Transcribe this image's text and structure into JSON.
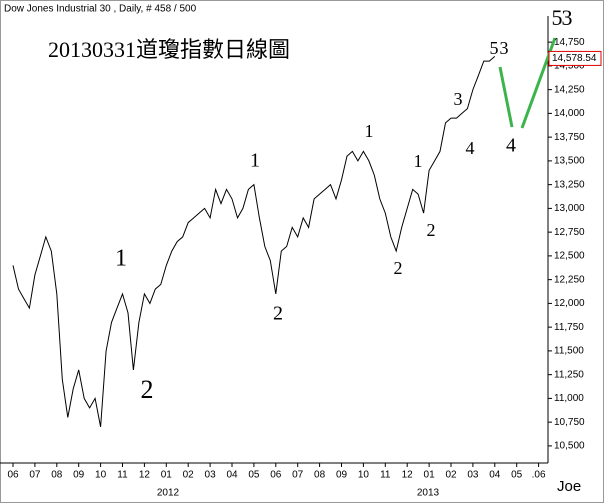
{
  "header": "Dow Jones Industrial 30 , Daily, # 458 / 500",
  "chart_data": {
    "type": "line",
    "title": "20130331道瓊指數日線圖",
    "categories": [
      "06",
      null,
      null,
      null,
      "07",
      null,
      null,
      null,
      "08",
      null,
      null,
      null,
      "09",
      null,
      null,
      null,
      "10",
      null,
      null,
      null,
      "11",
      null,
      null,
      null,
      "12",
      null,
      null,
      null,
      "01",
      null,
      null,
      null,
      "02",
      null,
      null,
      null,
      "03",
      null,
      null,
      null,
      "04",
      null,
      null,
      null,
      "05",
      null,
      null,
      null,
      "06",
      null,
      null,
      null,
      "07",
      null,
      null,
      null,
      "08",
      null,
      null,
      null,
      "09",
      null,
      null,
      null,
      "10",
      null,
      null,
      null,
      "11",
      null,
      null,
      null,
      "12",
      null,
      null,
      null,
      "01",
      null,
      null,
      null,
      "02",
      null,
      null,
      null,
      "03",
      null,
      null,
      null,
      "04",
      null,
      null,
      null,
      "05",
      null,
      null,
      null,
      ".06",
      null,
      null,
      null
    ],
    "year_labels": [
      "2012",
      "2013"
    ],
    "series": [
      {
        "color": "#000000",
        "values": [
          12400,
          12150,
          12050,
          11950,
          12300,
          12500,
          12700,
          12550,
          12100,
          11200,
          10800,
          11100,
          11300,
          11000,
          10900,
          11000,
          10700,
          11500,
          11800,
          11950,
          12100,
          11900,
          11300,
          11800,
          12100,
          12000,
          12150,
          12200,
          12400,
          12550,
          12650,
          12700,
          12850,
          12900,
          12950,
          13000,
          12900,
          13200,
          13050,
          13200,
          13100,
          12900,
          13000,
          13200,
          13250,
          12900,
          12600,
          12450,
          12100,
          12550,
          12600,
          12800,
          12700,
          12900,
          12800,
          13100,
          13150,
          13200,
          13250,
          13100,
          13300,
          13550,
          13600,
          13500,
          13600,
          13500,
          13350,
          13100,
          12950,
          12700,
          12550,
          12800,
          13000,
          13200,
          13150,
          12950,
          13400,
          13500,
          13600,
          13900,
          13950,
          13950,
          14000,
          14050,
          14250,
          14400,
          14550,
          14550,
          14600,
          null,
          null,
          null,
          null,
          null,
          null,
          null,
          null,
          null,
          null,
          null
        ]
      }
    ],
    "ylim": [
      10320,
      15025
    ],
    "yticks": [
      {
        "value": 10500,
        "label": "10,500"
      },
      {
        "value": 10750,
        "label": "10,750"
      },
      {
        "value": 11000,
        "label": "11,000"
      },
      {
        "value": 11250,
        "label": "11,250"
      },
      {
        "value": 11500,
        "label": "11,500"
      },
      {
        "value": 11750,
        "label": "11,750"
      },
      {
        "value": 12000,
        "label": "12,000"
      },
      {
        "value": 12250,
        "label": "12,250"
      },
      {
        "value": 12500,
        "label": "12,500"
      },
      {
        "value": 12750,
        "label": "12,750"
      },
      {
        "value": 13000,
        "label": "13,000"
      },
      {
        "value": 13250,
        "label": "13,250"
      },
      {
        "value": 13500,
        "label": "13,500"
      },
      {
        "value": 13750,
        "label": "13,750"
      },
      {
        "value": 14000,
        "label": "14,000"
      },
      {
        "value": 14250,
        "label": "14,250"
      },
      {
        "value": 14500,
        "label": "14,500"
      },
      {
        "value": 14750,
        "label": "14,750"
      }
    ],
    "last_value": {
      "value": 14578.54,
      "label": "14,578.54",
      "color": "#e00000"
    },
    "annotations": [
      {
        "text": "1",
        "color": "#5050c0"
      },
      {
        "text": "2",
        "color": "#5050c0"
      },
      {
        "text": "1",
        "color": "#e03030"
      },
      {
        "text": "2",
        "color": "#e03030"
      },
      {
        "text": "1",
        "color": "#40b060"
      },
      {
        "text": "2",
        "color": "#40b060"
      },
      {
        "text": "1",
        "color": "#3aa0d8"
      },
      {
        "text": "2",
        "color": "#3aa0d8"
      },
      {
        "text": "3",
        "color": "#3aa0d8"
      },
      {
        "text": "4",
        "color": "#3aa0d8"
      },
      {
        "text": "5",
        "color": "#3aa0d8"
      },
      {
        "text": "3",
        "color": "#3aa0d8"
      },
      {
        "text": "4",
        "color": "#40b060"
      },
      {
        "text": "5",
        "color": "#40b060"
      },
      {
        "text": "3",
        "color": "#e03030"
      }
    ],
    "watermark": "Joe"
  }
}
